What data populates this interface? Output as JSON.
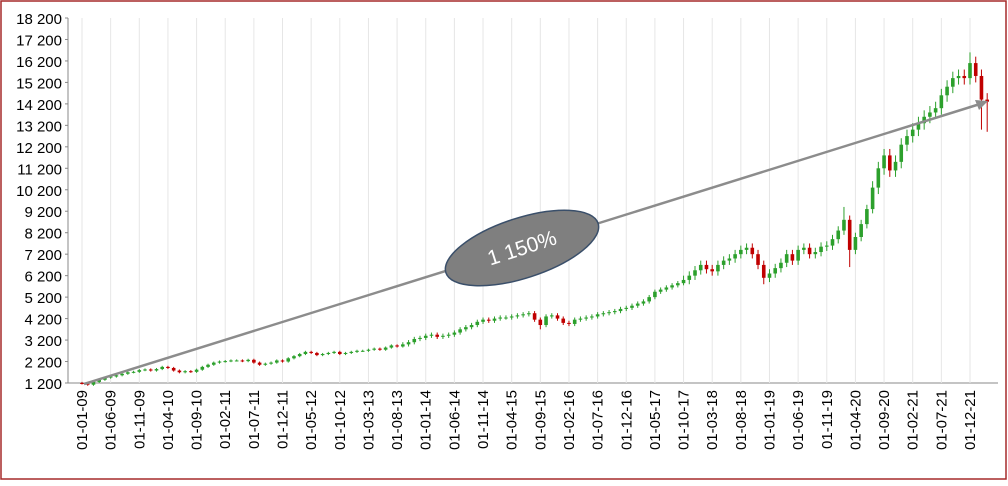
{
  "chart_data": {
    "type": "candlestick",
    "annotation": "1 150%",
    "up_color": "#2ca02c",
    "down_color": "#c00000",
    "xgrid": true,
    "ylim": [
      1200,
      18200
    ],
    "yticks": [
      {
        "value": 1200,
        "label": "1 200"
      },
      {
        "value": 2200,
        "label": "2 200"
      },
      {
        "value": 3200,
        "label": "3 200"
      },
      {
        "value": 4200,
        "label": "4 200"
      },
      {
        "value": 5200,
        "label": "5 200"
      },
      {
        "value": 6200,
        "label": "6 200"
      },
      {
        "value": 7200,
        "label": "7 200"
      },
      {
        "value": 8200,
        "label": "8 200"
      },
      {
        "value": 9200,
        "label": "9 200"
      },
      {
        "value": 10200,
        "label": "10 200"
      },
      {
        "value": 11200,
        "label": "11 200"
      },
      {
        "value": 12200,
        "label": "12 200"
      },
      {
        "value": 13200,
        "label": "13 200"
      },
      {
        "value": 14200,
        "label": "14 200"
      },
      {
        "value": 15200,
        "label": "15 200"
      },
      {
        "value": 16200,
        "label": "16 200"
      },
      {
        "value": 17200,
        "label": "17 200"
      },
      {
        "value": 18200,
        "label": "18 200"
      }
    ],
    "categories": [
      "01-01-09",
      null,
      null,
      null,
      null,
      "01-06-09",
      null,
      null,
      null,
      null,
      "01-11-09",
      null,
      null,
      null,
      null,
      "01-04-10",
      null,
      null,
      null,
      null,
      "01-09-10",
      null,
      null,
      null,
      null,
      "01-02-11",
      null,
      null,
      null,
      null,
      "01-07-11",
      null,
      null,
      null,
      null,
      "01-12-11",
      null,
      null,
      null,
      null,
      "01-05-12",
      null,
      null,
      null,
      null,
      "01-10-12",
      null,
      null,
      null,
      null,
      "01-03-13",
      null,
      null,
      null,
      null,
      "01-08-13",
      null,
      null,
      null,
      null,
      "01-01-14",
      null,
      null,
      null,
      null,
      "01-06-14",
      null,
      null,
      null,
      null,
      "01-11-14",
      null,
      null,
      null,
      null,
      "01-04-15",
      null,
      null,
      null,
      null,
      "01-09-15",
      null,
      null,
      null,
      null,
      "01-02-16",
      null,
      null,
      null,
      null,
      "01-07-16",
      null,
      null,
      null,
      null,
      "01-12-16",
      null,
      null,
      null,
      null,
      "01-05-17",
      null,
      null,
      null,
      null,
      "01-10-17",
      null,
      null,
      null,
      null,
      "01-03-18",
      null,
      null,
      null,
      null,
      "01-08-18",
      null,
      null,
      null,
      null,
      "01-01-19",
      null,
      null,
      null,
      null,
      "01-06-19",
      null,
      null,
      null,
      null,
      "01-11-19",
      null,
      null,
      null,
      null,
      "01-04-20",
      null,
      null,
      null,
      null,
      "01-09-20",
      null,
      null,
      null,
      null,
      "01-02-21",
      null,
      null,
      null,
      null,
      "01-07-21",
      null,
      null,
      null,
      null,
      "01-12-21",
      null,
      null,
      null
    ],
    "open": [
      1200,
      1180,
      1120,
      1250,
      1350,
      1450,
      1500,
      1560,
      1630,
      1700,
      1720,
      1800,
      1830,
      1780,
      1850,
      1950,
      1900,
      1780,
      1700,
      1750,
      1720,
      1820,
      1950,
      2050,
      2150,
      2200,
      2220,
      2250,
      2250,
      2220,
      2280,
      2150,
      2050,
      2100,
      2150,
      2250,
      2200,
      2350,
      2450,
      2550,
      2650,
      2600,
      2500,
      2550,
      2600,
      2650,
      2550,
      2600,
      2650,
      2700,
      2700,
      2750,
      2800,
      2750,
      2850,
      2950,
      2900,
      3000,
      3100,
      3250,
      3300,
      3400,
      3450,
      3350,
      3400,
      3450,
      3550,
      3700,
      3800,
      3900,
      4050,
      4150,
      4100,
      4200,
      4250,
      4250,
      4300,
      4350,
      4400,
      4450,
      4150,
      3900,
      4300,
      4350,
      4200,
      4000,
      3950,
      4150,
      4200,
      4250,
      4300,
      4400,
      4450,
      4500,
      4550,
      4650,
      4700,
      4800,
      4900,
      5000,
      5200,
      5450,
      5550,
      5650,
      5750,
      5850,
      6000,
      6200,
      6450,
      6700,
      6500,
      6400,
      6700,
      6900,
      7000,
      7200,
      7400,
      7500,
      7200,
      6700,
      6100,
      6300,
      6550,
      6800,
      7200,
      6900,
      7400,
      7500,
      7200,
      7300,
      7550,
      7600,
      7900,
      8300,
      8800,
      7400,
      8000,
      8600,
      9300,
      10300,
      11200,
      11800,
      11100,
      11500,
      12300,
      12700,
      13000,
      13300,
      13600,
      13800,
      14000,
      14600,
      15000,
      15400,
      15500,
      15400,
      16100,
      15500,
      14400
    ],
    "high": [
      1250,
      1230,
      1300,
      1400,
      1500,
      1550,
      1610,
      1680,
      1750,
      1770,
      1850,
      1880,
      1880,
      1900,
      2000,
      2000,
      1950,
      1830,
      1800,
      1800,
      1870,
      2000,
      2100,
      2200,
      2250,
      2270,
      2300,
      2300,
      2300,
      2330,
      2330,
      2200,
      2150,
      2200,
      2300,
      2300,
      2400,
      2500,
      2600,
      2700,
      2700,
      2650,
      2600,
      2650,
      2700,
      2700,
      2650,
      2700,
      2750,
      2750,
      2800,
      2850,
      2850,
      2900,
      3000,
      3000,
      3100,
      3200,
      3350,
      3400,
      3500,
      3550,
      3550,
      3500,
      3550,
      3650,
      3800,
      3900,
      4000,
      4150,
      4250,
      4250,
      4300,
      4350,
      4350,
      4400,
      4450,
      4500,
      4550,
      4550,
      4250,
      4400,
      4450,
      4450,
      4300,
      4100,
      4250,
      4300,
      4350,
      4400,
      4500,
      4550,
      4600,
      4650,
      4750,
      4800,
      4900,
      5000,
      5100,
      5300,
      5550,
      5650,
      5750,
      5850,
      5950,
      6200,
      6400,
      6650,
      6900,
      6900,
      6700,
      6900,
      7100,
      7200,
      7400,
      7600,
      7700,
      7700,
      7400,
      6900,
      6500,
      6750,
      7000,
      7400,
      7400,
      7600,
      7700,
      7700,
      7500,
      7750,
      7800,
      8100,
      8500,
      9400,
      9000,
      8200,
      8800,
      9500,
      10600,
      11500,
      12100,
      12100,
      11800,
      12600,
      13000,
      13300,
      13600,
      13900,
      14100,
      14300,
      14900,
      15300,
      15700,
      15800,
      15800,
      16600,
      16400,
      15800,
      14700
    ],
    "low": [
      1130,
      1070,
      1070,
      1200,
      1300,
      1400,
      1450,
      1510,
      1580,
      1650,
      1670,
      1750,
      1730,
      1730,
      1800,
      1850,
      1730,
      1650,
      1650,
      1670,
      1670,
      1770,
      1900,
      2000,
      2100,
      2150,
      2170,
      2200,
      2170,
      2170,
      2100,
      2000,
      2000,
      2050,
      2100,
      2150,
      2150,
      2300,
      2400,
      2500,
      2550,
      2450,
      2450,
      2500,
      2550,
      2500,
      2500,
      2550,
      2600,
      2650,
      2650,
      2700,
      2700,
      2700,
      2800,
      2850,
      2850,
      2900,
      3000,
      3150,
      3200,
      3300,
      3250,
      3250,
      3300,
      3350,
      3450,
      3600,
      3700,
      3800,
      3950,
      4000,
      4000,
      4100,
      4150,
      4150,
      4200,
      4250,
      4300,
      4050,
      3700,
      3800,
      4200,
      4100,
      3900,
      3850,
      3850,
      4050,
      4100,
      4150,
      4200,
      4300,
      4350,
      4400,
      4450,
      4550,
      4600,
      4700,
      4800,
      4900,
      5100,
      5350,
      5450,
      5550,
      5650,
      5750,
      5800,
      6000,
      6250,
      6300,
      6200,
      6200,
      6500,
      6700,
      6800,
      7000,
      7200,
      7000,
      6500,
      5800,
      5900,
      6100,
      6350,
      6600,
      6700,
      6700,
      7200,
      7000,
      7000,
      7100,
      7350,
      7400,
      7700,
      8100,
      6600,
      7200,
      7800,
      8400,
      9100,
      10000,
      10900,
      10800,
      10800,
      11200,
      12000,
      12400,
      12700,
      13000,
      13300,
      13500,
      13700,
      14300,
      14700,
      15100,
      15100,
      15100,
      15200,
      13000,
      12900
    ],
    "close": [
      1180,
      1120,
      1250,
      1350,
      1450,
      1500,
      1560,
      1630,
      1700,
      1720,
      1800,
      1830,
      1780,
      1850,
      1950,
      1900,
      1780,
      1700,
      1750,
      1720,
      1820,
      1950,
      2050,
      2150,
      2200,
      2220,
      2250,
      2250,
      2220,
      2280,
      2150,
      2050,
      2100,
      2150,
      2250,
      2200,
      2350,
      2450,
      2550,
      2650,
      2600,
      2500,
      2550,
      2600,
      2650,
      2550,
      2600,
      2650,
      2700,
      2700,
      2750,
      2800,
      2750,
      2850,
      2950,
      2900,
      3000,
      3100,
      3250,
      3300,
      3400,
      3450,
      3350,
      3400,
      3450,
      3550,
      3700,
      3800,
      3900,
      4050,
      4150,
      4100,
      4200,
      4250,
      4250,
      4300,
      4350,
      4400,
      4450,
      4150,
      3900,
      4300,
      4350,
      4200,
      4000,
      3950,
      4150,
      4200,
      4250,
      4300,
      4400,
      4450,
      4500,
      4550,
      4650,
      4700,
      4800,
      4900,
      5000,
      5200,
      5450,
      5550,
      5650,
      5750,
      5850,
      6000,
      6200,
      6450,
      6700,
      6500,
      6400,
      6700,
      6900,
      7000,
      7200,
      7400,
      7500,
      7200,
      6700,
      6100,
      6300,
      6550,
      6800,
      7200,
      6900,
      7400,
      7500,
      7200,
      7300,
      7550,
      7600,
      7900,
      8300,
      8800,
      7400,
      8000,
      8600,
      9300,
      10300,
      11200,
      11800,
      11100,
      11500,
      12300,
      12700,
      13000,
      13300,
      13600,
      13800,
      14000,
      14600,
      15000,
      15400,
      15500,
      15400,
      16100,
      15500,
      14400,
      14300
    ]
  }
}
